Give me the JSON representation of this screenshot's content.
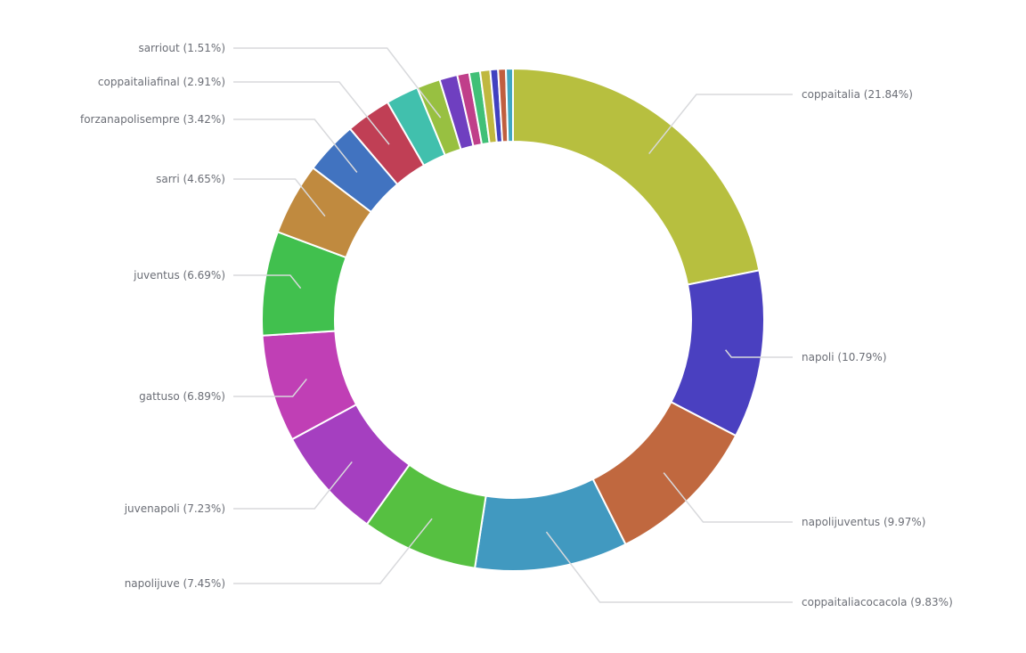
{
  "chart_data": {
    "type": "pie",
    "variant": "donut",
    "title": "",
    "slices": [
      {
        "label": "coppaitalia",
        "value": 21.84,
        "display": "coppaitalia (21.84%)",
        "color": "#b7bf3f",
        "labeled": true
      },
      {
        "label": "napoli",
        "value": 10.79,
        "display": "napoli (10.79%)",
        "color": "#4a40c0",
        "labeled": true
      },
      {
        "label": "napolijuventus",
        "value": 9.97,
        "display": "napolijuventus (9.97%)",
        "color": "#c0683f",
        "labeled": true
      },
      {
        "label": "coppaitaliacocacola",
        "value": 9.83,
        "display": "coppaitaliacocacola (9.83%)",
        "color": "#4199c0",
        "labeled": true
      },
      {
        "label": "napolijuve",
        "value": 7.45,
        "display": "napolijuve (7.45%)",
        "color": "#56c041",
        "labeled": true
      },
      {
        "label": "juvenapoli",
        "value": 7.23,
        "display": "juvenapoli (7.23%)",
        "color": "#a53fc0",
        "labeled": true
      },
      {
        "label": "gattuso",
        "value": 6.89,
        "display": "gattuso (6.89%)",
        "color": "#c03fb5",
        "labeled": true
      },
      {
        "label": "juventus",
        "value": 6.69,
        "display": "juventus (6.69%)",
        "color": "#41c04e",
        "labeled": true
      },
      {
        "label": "sarri",
        "value": 4.65,
        "display": "sarri (4.65%)",
        "color": "#c08a3f",
        "labeled": true
      },
      {
        "label": "forzanapolisempre",
        "value": 3.42,
        "display": "forzanapolisempre (3.42%)",
        "color": "#4173c0",
        "labeled": true
      },
      {
        "label": "coppaitaliafinal",
        "value": 2.91,
        "display": "coppaitaliafinal (2.91%)",
        "color": "#c03f55",
        "labeled": true
      },
      {
        "label": "",
        "value": 2.1,
        "color": "#41c0ad",
        "labeled": false
      },
      {
        "label": "sarriout",
        "value": 1.51,
        "display": "sarriout (1.51%)",
        "color": "#98c041",
        "labeled": true
      },
      {
        "label": "",
        "value": 1.15,
        "color": "#6f3fc0",
        "labeled": false
      },
      {
        "label": "",
        "value": 0.77,
        "color": "#c03f8a",
        "labeled": false
      },
      {
        "label": "",
        "value": 0.7,
        "color": "#41c077",
        "labeled": false
      },
      {
        "label": "",
        "value": 0.65,
        "color": "#c0b83f",
        "labeled": false
      },
      {
        "label": "",
        "value": 0.5,
        "color": "#4141c0",
        "labeled": false
      },
      {
        "label": "",
        "value": 0.5,
        "color": "#c05e3f",
        "labeled": false
      },
      {
        "label": "",
        "value": 0.45,
        "color": "#41a6c0",
        "labeled": false
      }
    ]
  }
}
